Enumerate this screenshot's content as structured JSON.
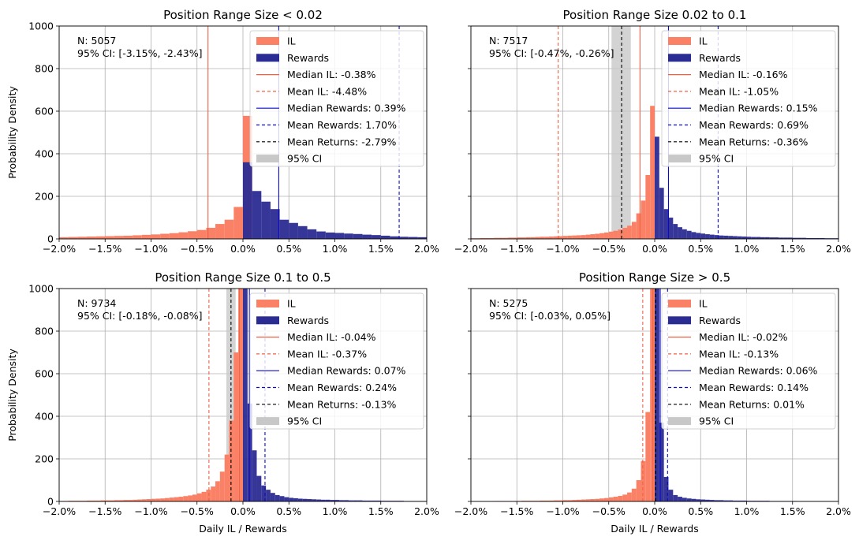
{
  "colors": {
    "il": "#FA8066",
    "rewards": "#2B2B94",
    "il_line": "#F06045",
    "rewards_line": "#0A0AC8",
    "returns_line": "#000000",
    "ci": "#C8C8C8",
    "grid": "#B0B0B0"
  },
  "chart_data": [
    {
      "type": "bar",
      "title": "Position Range Size < 0.02",
      "xlabel": "",
      "ylabel": "Probability Density",
      "xlim": [
        -2.0,
        2.0
      ],
      "ylim": [
        0,
        1000
      ],
      "xticks": [
        "−2.0%",
        "−1.5%",
        "−1.0%",
        "−0.5%",
        "0.0%",
        "0.5%",
        "1.0%",
        "1.5%",
        "2.0%"
      ],
      "yticks": [
        "0",
        "200",
        "400",
        "600",
        "800",
        "1000"
      ],
      "info": {
        "n": "N: 5057",
        "ci": "95% CI: [-3.15%, -2.43%]"
      },
      "legend": {
        "il": "IL",
        "rewards": "Rewards",
        "median_il": "Median IL: -0.38%",
        "mean_il": "Mean IL: -4.48%",
        "median_rewards": "Median Rewards: 0.39%",
        "mean_rewards": "Mean Rewards: 1.70%",
        "mean_returns": "Mean Returns: -2.79%",
        "ci": "95% CI"
      },
      "lines": {
        "median_il": -0.38,
        "mean_il": -4.48,
        "median_rewards": 0.39,
        "mean_rewards": 1.7,
        "mean_returns": -2.79
      },
      "ci_range": [
        -3.15,
        -2.43
      ],
      "il_bins": {
        "start": -2.0,
        "width": 0.1,
        "values": [
          8,
          9,
          10,
          11,
          12,
          13,
          14,
          15,
          17,
          19,
          21,
          24,
          27,
          31,
          36,
          42,
          52,
          70,
          90,
          150,
          578
        ]
      },
      "rewards_bins": {
        "start": 0.0,
        "width": 0.1,
        "values": [
          360,
          225,
          175,
          140,
          90,
          75,
          60,
          45,
          35,
          30,
          28,
          25,
          23,
          20,
          18,
          15,
          12,
          10,
          9,
          8
        ]
      }
    },
    {
      "type": "bar",
      "title": "Position Range Size 0.02 to 0.1",
      "xlabel": "",
      "ylabel": "",
      "xlim": [
        -2.0,
        2.0
      ],
      "ylim": [
        0,
        1000
      ],
      "xticks": [
        "−2.0%",
        "−1.5%",
        "−1.0%",
        "−0.5%",
        "0.0%",
        "0.5%",
        "1.0%",
        "1.5%",
        "2.0%"
      ],
      "yticks": [
        "0",
        "200",
        "400",
        "600",
        "800",
        "1000"
      ],
      "info": {
        "n": "N: 7517",
        "ci": "95% CI: [-0.47%, -0.26%]"
      },
      "legend": {
        "il": "IL",
        "rewards": "Rewards",
        "median_il": "Median IL: -0.16%",
        "mean_il": "Mean IL: -1.05%",
        "median_rewards": "Median Rewards: 0.15%",
        "mean_rewards": "Mean Rewards: 0.69%",
        "mean_returns": "Mean Returns: -0.36%",
        "ci": "95% CI"
      },
      "lines": {
        "median_il": -0.16,
        "mean_il": -1.05,
        "median_rewards": 0.15,
        "mean_rewards": 0.69,
        "mean_returns": -0.36
      },
      "ci_range": [
        -0.47,
        -0.26
      ],
      "il_bins": {
        "start": -2.0,
        "width": 0.05,
        "values": [
          3,
          3,
          4,
          4,
          4,
          5,
          5,
          5,
          6,
          6,
          7,
          7,
          8,
          8,
          9,
          10,
          10,
          11,
          12,
          13,
          14,
          15,
          16,
          17,
          18,
          20,
          22,
          24,
          27,
          30,
          34,
          38,
          44,
          52,
          62,
          80,
          120,
          180,
          300,
          625
        ]
      },
      "rewards_bins": {
        "start": 0.0,
        "width": 0.05,
        "values": [
          480,
          240,
          140,
          100,
          70,
          55,
          45,
          38,
          32,
          28,
          25,
          22,
          20,
          18,
          16,
          15,
          14,
          13,
          12,
          11,
          10,
          9,
          9,
          8,
          8,
          7,
          7,
          6,
          6,
          6,
          5,
          5,
          5,
          4,
          4,
          4,
          4,
          3,
          3,
          3
        ]
      }
    },
    {
      "type": "bar",
      "title": "Position Range Size 0.1 to 0.5",
      "xlabel": "Daily IL / Rewards",
      "ylabel": "Probability Density",
      "xlim": [
        -2.0,
        2.0
      ],
      "ylim": [
        0,
        1000
      ],
      "xticks": [
        "−2.0%",
        "−1.5%",
        "−1.0%",
        "−0.5%",
        "0.0%",
        "0.5%",
        "1.0%",
        "1.5%",
        "2.0%"
      ],
      "yticks": [
        "0",
        "200",
        "400",
        "600",
        "800",
        "1000"
      ],
      "info": {
        "n": "N: 9734",
        "ci": "95% CI: [-0.18%, -0.08%]"
      },
      "legend": {
        "il": "IL",
        "rewards": "Rewards",
        "median_il": "Median IL: -0.04%",
        "mean_il": "Mean IL: -0.37%",
        "median_rewards": "Median Rewards: 0.07%",
        "mean_rewards": "Mean Rewards: 0.24%",
        "mean_returns": "Mean Returns: -0.13%",
        "ci": "95% CI"
      },
      "lines": {
        "median_il": -0.04,
        "mean_il": -0.37,
        "median_rewards": 0.07,
        "mean_rewards": 0.24,
        "mean_returns": -0.13
      },
      "ci_range": [
        -0.18,
        -0.08
      ],
      "il_bins": {
        "start": -2.0,
        "width": 0.05,
        "values": [
          2,
          2,
          3,
          3,
          3,
          3,
          4,
          4,
          4,
          5,
          5,
          5,
          6,
          6,
          7,
          7,
          8,
          9,
          10,
          11,
          12,
          13,
          14,
          16,
          18,
          20,
          22,
          25,
          28,
          32,
          38,
          45,
          55,
          70,
          95,
          140,
          220,
          380,
          700,
          1000
        ]
      },
      "rewards_bins": {
        "start": 0.0,
        "width": 0.05,
        "values": [
          1000,
          460,
          240,
          120,
          75,
          55,
          40,
          30,
          25,
          20,
          17,
          15,
          13,
          12,
          11,
          10,
          9,
          8,
          8,
          7,
          7,
          6,
          6,
          5,
          5,
          5,
          4,
          4,
          4,
          4,
          3,
          3,
          3,
          3,
          3,
          2,
          2,
          2,
          2,
          2
        ]
      }
    },
    {
      "type": "bar",
      "title": "Position Range Size > 0.5",
      "xlabel": "Daily IL / Rewards",
      "ylabel": "",
      "xlim": [
        -2.0,
        2.0
      ],
      "ylim": [
        0,
        1000
      ],
      "xticks": [
        "−2.0%",
        "−1.5%",
        "−1.0%",
        "−0.5%",
        "0.0%",
        "0.5%",
        "1.0%",
        "1.5%",
        "2.0%"
      ],
      "yticks": [
        "0",
        "200",
        "400",
        "600",
        "800",
        "1000"
      ],
      "info": {
        "n": "N: 5275",
        "ci": "95% CI: [-0.03%, 0.05%]"
      },
      "legend": {
        "il": "IL",
        "rewards": "Rewards",
        "median_il": "Median IL: -0.02%",
        "mean_il": "Mean IL: -0.13%",
        "median_rewards": "Median Rewards: 0.06%",
        "mean_rewards": "Mean Rewards: 0.14%",
        "mean_returns": "Mean Returns: 0.01%",
        "ci": "95% CI"
      },
      "lines": {
        "median_il": -0.02,
        "mean_il": -0.13,
        "median_rewards": 0.06,
        "mean_rewards": 0.14,
        "mean_returns": 0.01
      },
      "ci_range": [
        -0.03,
        0.05
      ],
      "il_bins": {
        "start": -2.0,
        "width": 0.05,
        "values": [
          1,
          1,
          1,
          1,
          1,
          2,
          2,
          2,
          2,
          2,
          2,
          3,
          3,
          3,
          3,
          4,
          4,
          4,
          5,
          5,
          6,
          6,
          7,
          8,
          9,
          10,
          11,
          12,
          14,
          16,
          19,
          22,
          26,
          32,
          42,
          60,
          100,
          190,
          420,
          1000
        ]
      },
      "rewards_bins": {
        "start": 0.0,
        "width": 0.05,
        "values": [
          1000,
          370,
          115,
          55,
          30,
          22,
          17,
          14,
          12,
          10,
          9,
          8,
          7,
          6,
          6,
          5,
          5,
          4,
          4,
          4,
          3,
          3,
          3,
          3,
          3,
          2,
          2,
          2,
          2,
          2,
          2,
          1,
          1,
          1,
          1,
          1,
          1,
          1,
          1,
          1
        ]
      }
    }
  ]
}
